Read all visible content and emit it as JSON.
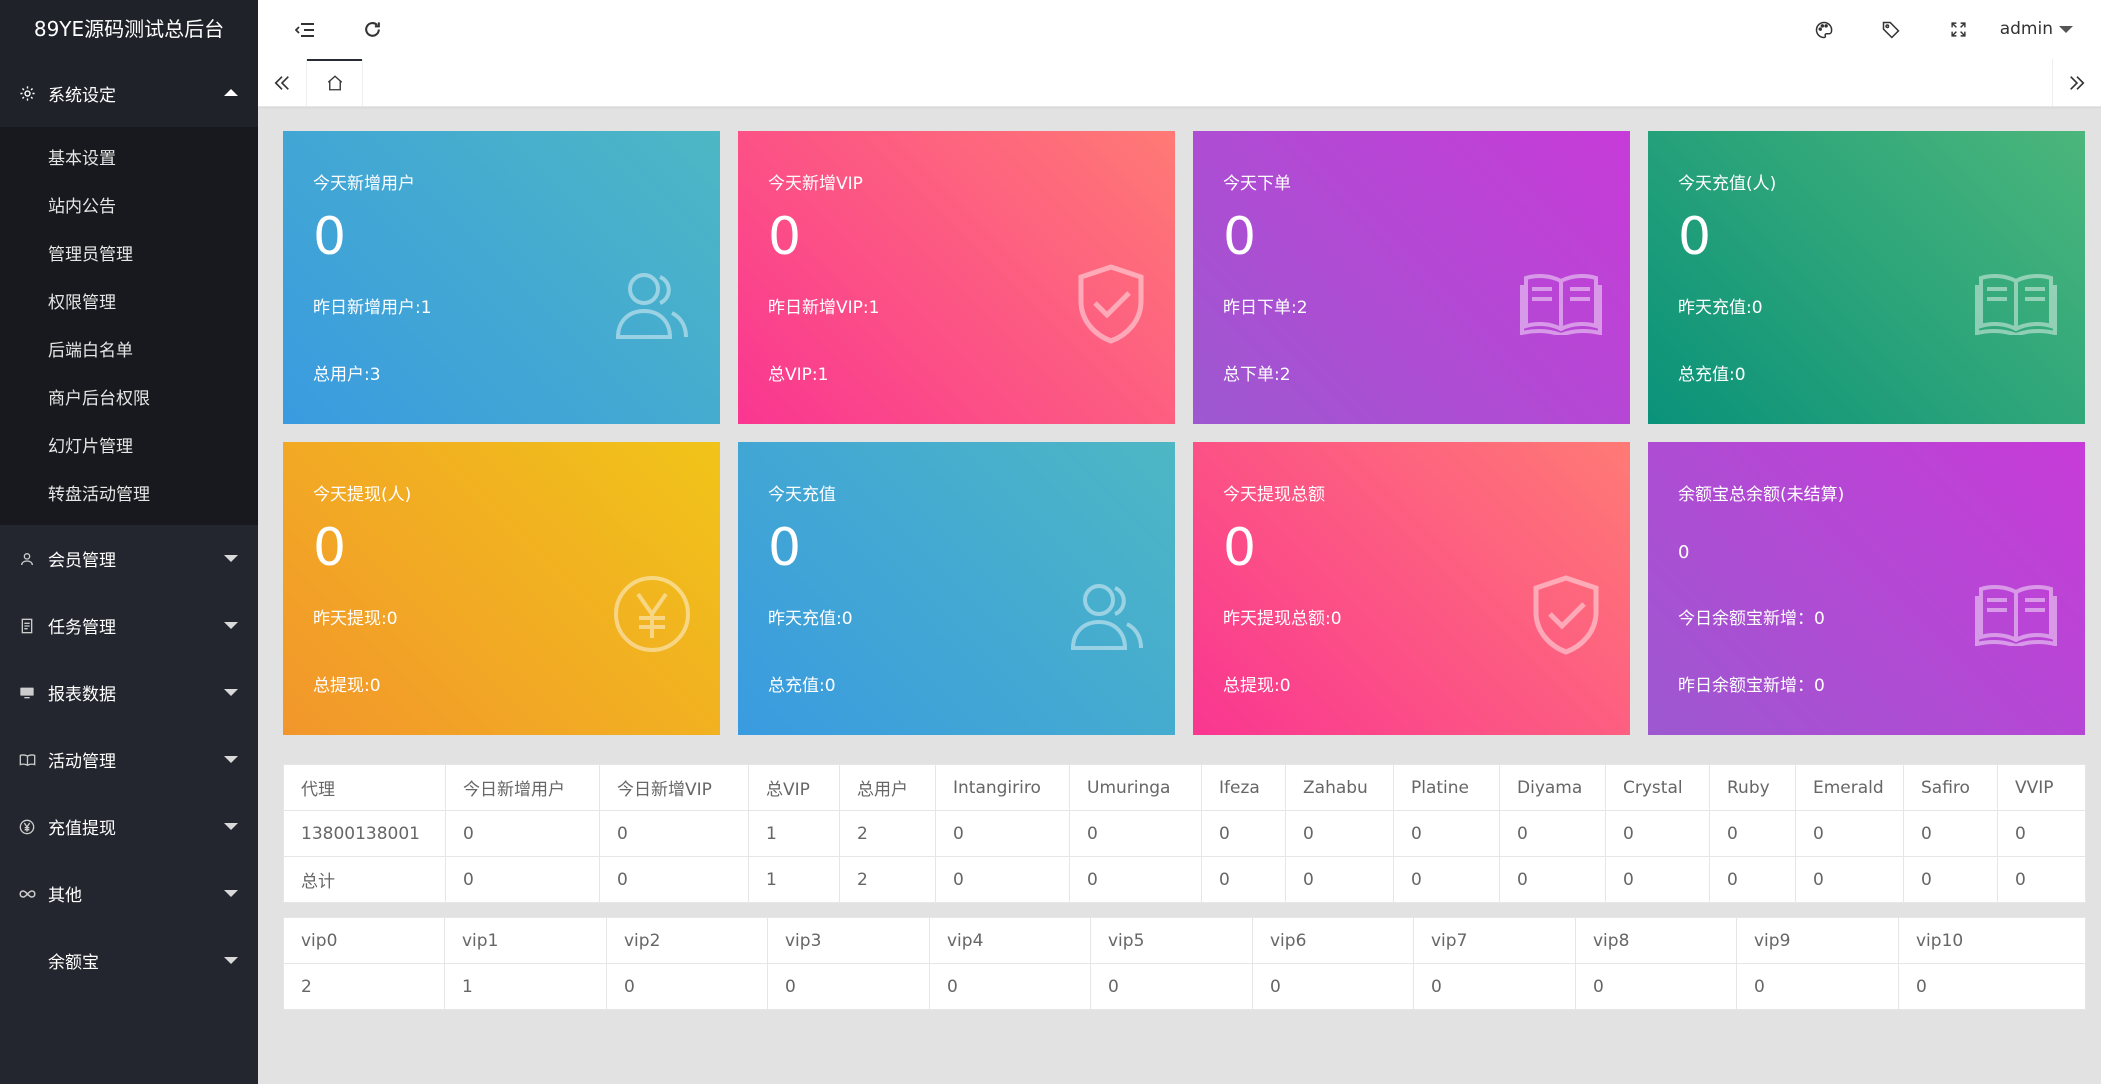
{
  "app": {
    "title": "89YE源码测试总后台"
  },
  "sidebar": {
    "sections": [
      {
        "label": "系统设定",
        "icon": "gear-icon",
        "open": true,
        "items": [
          "基本设置",
          "站内公告",
          "管理员管理",
          "权限管理",
          "后端白名单",
          "商户后台权限",
          "幻灯片管理",
          "转盘活动管理"
        ]
      },
      {
        "label": "会员管理",
        "icon": "user-icon"
      },
      {
        "label": "任务管理",
        "icon": "document-icon"
      },
      {
        "label": "报表数据",
        "icon": "monitor-icon"
      },
      {
        "label": "活动管理",
        "icon": "book-icon"
      },
      {
        "label": "充值提现",
        "icon": "yen-icon"
      },
      {
        "label": "其他",
        "icon": "infinity-icon"
      },
      {
        "label": "余额宝",
        "icon": ""
      }
    ]
  },
  "header": {
    "user": "admin",
    "icons": [
      "menu-collapse-icon",
      "refresh-icon",
      "theme-icon",
      "tag-icon",
      "fullscreen-icon"
    ]
  },
  "cards": [
    {
      "title": "今天新增用户",
      "value": "0",
      "line1": "昨日新增用户:1",
      "line2": "总用户:3",
      "icon": "users-icon"
    },
    {
      "title": "今天新增VIP",
      "value": "0",
      "line1": "昨日新增VIP:1",
      "line2": "总VIP:1",
      "icon": "shield-check-icon"
    },
    {
      "title": "今天下单",
      "value": "0",
      "line1": "昨日下单:2",
      "line2": "总下单:2",
      "icon": "book-icon"
    },
    {
      "title": "今天充值(人)",
      "value": "0",
      "line1": "昨天充值:0",
      "line2": "总充值:0",
      "icon": "book-icon"
    },
    {
      "title": "今天提现(人)",
      "value": "0",
      "line1": "昨天提现:0",
      "line2": "总提现:0",
      "icon": "yen-circle-icon"
    },
    {
      "title": "今天充值",
      "value": "0",
      "line1": "昨天充值:0",
      "line2": "总充值:0",
      "icon": "users-icon"
    },
    {
      "title": "今天提现总额",
      "value": "0",
      "line1": "昨天提现总额:0",
      "line2": "总提现:0",
      "icon": "shield-check-icon"
    },
    {
      "title": "余额宝总余额(未结算)",
      "value": "0",
      "line1": "今日余额宝新增：0",
      "line2": "昨日余额宝新增：0",
      "icon": "book-icon"
    }
  ],
  "agent_table": {
    "headers": [
      "代理",
      "今日新增用户",
      "今日新增VIP",
      "总VIP",
      "总用户",
      "Intangiriro",
      "Umuringa",
      "Ifeza",
      "Zahabu",
      "Platine",
      "Diyama",
      "Crystal",
      "Ruby",
      "Emerald",
      "Safiro",
      "VVIP"
    ],
    "rows": [
      [
        "13800138001",
        "0",
        "0",
        "1",
        "2",
        "0",
        "0",
        "0",
        "0",
        "0",
        "0",
        "0",
        "0",
        "0",
        "0",
        "0"
      ],
      [
        "总计",
        "0",
        "0",
        "1",
        "2",
        "0",
        "0",
        "0",
        "0",
        "0",
        "0",
        "0",
        "0",
        "0",
        "0",
        "0"
      ]
    ]
  },
  "vip_table": {
    "headers": [
      "vip0",
      "vip1",
      "vip2",
      "vip3",
      "vip4",
      "vip5",
      "vip6",
      "vip7",
      "vip8",
      "vip9",
      "vip10"
    ],
    "rows": [
      [
        "2",
        "1",
        "0",
        "0",
        "0",
        "0",
        "0",
        "0",
        "0",
        "0",
        "0"
      ]
    ]
  }
}
